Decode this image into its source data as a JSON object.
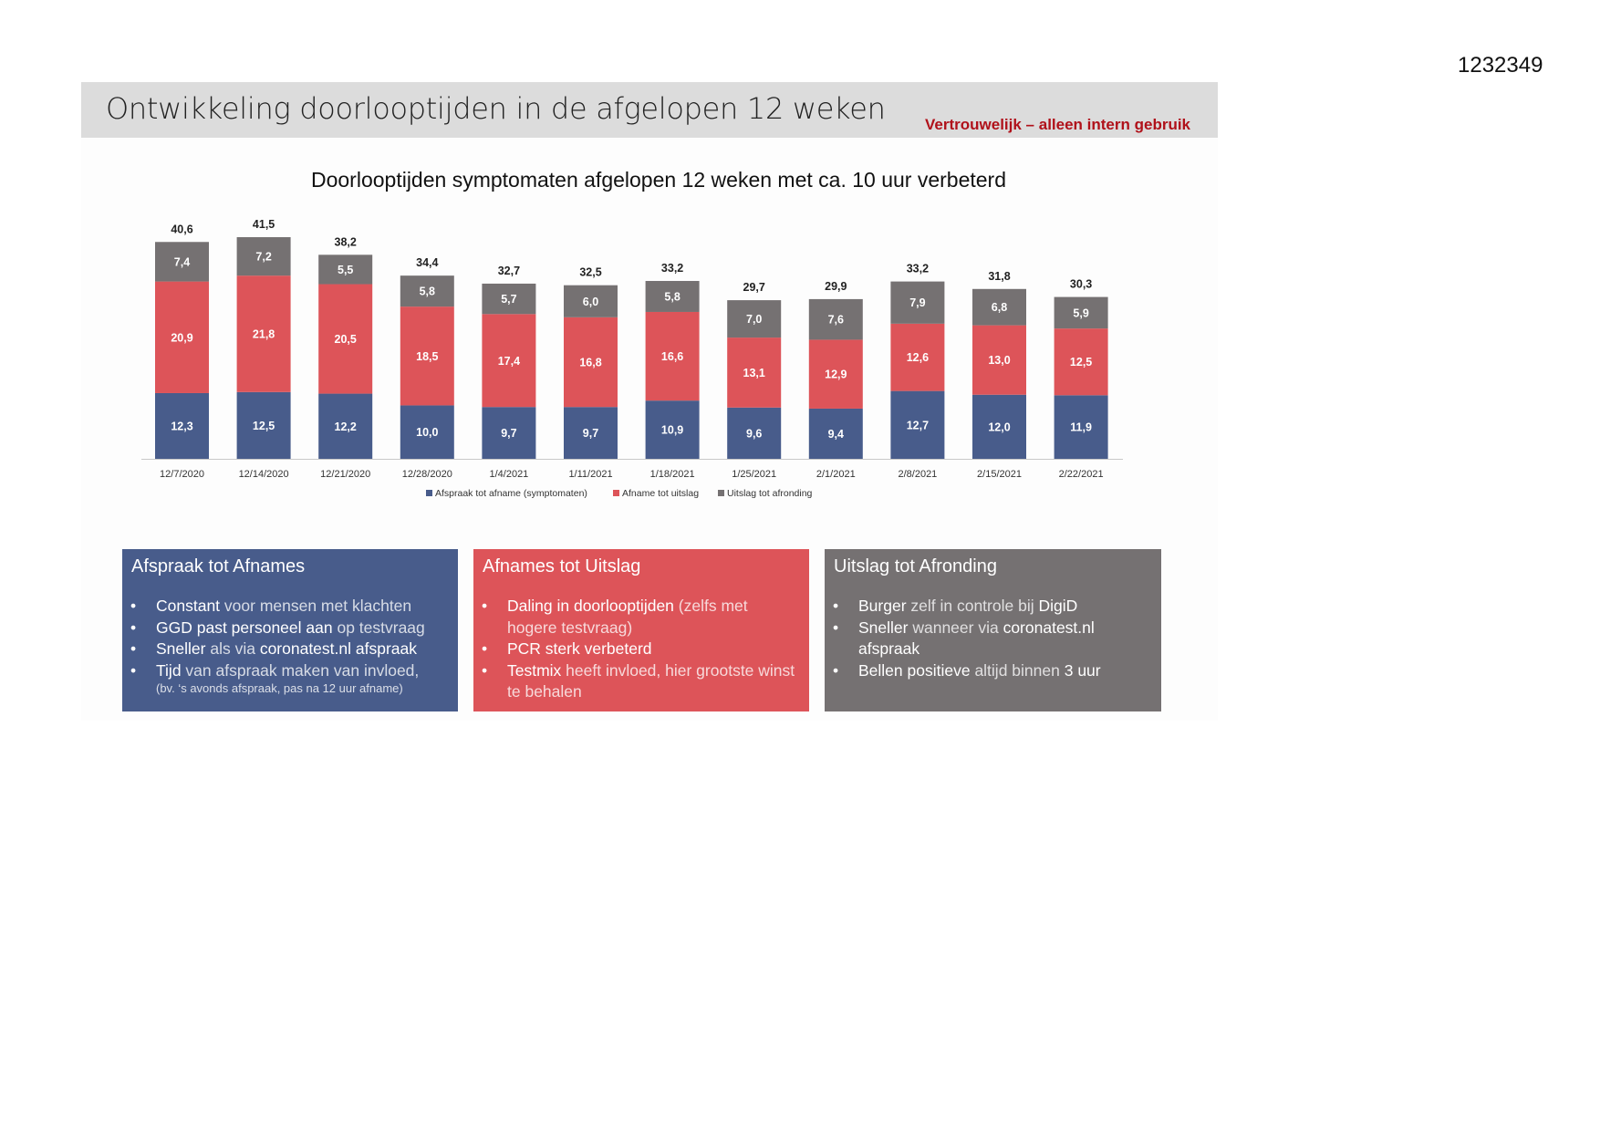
{
  "document_id": "1232349",
  "slide": {
    "title": "Ontwikkeling doorlooptijden in de afgelopen 12 weken",
    "confidential": "Vertrouwelijk – alleen intern gebruik"
  },
  "colors": {
    "blue": "#485c8b",
    "red": "#dd5459",
    "grey": "#757172"
  },
  "chart_data": {
    "type": "bar",
    "stacked": true,
    "title": "Doorlooptijden symptomaten afgelopen 12 weken met ca. 10 uur verbeterd",
    "categories": [
      "12/7/2020",
      "12/14/2020",
      "12/21/2020",
      "12/28/2020",
      "1/4/2021",
      "1/11/2021",
      "1/18/2021",
      "1/25/2021",
      "2/1/2021",
      "2/8/2021",
      "2/15/2021",
      "2/22/2021"
    ],
    "series": [
      {
        "name": "Afspraak tot afname (symptomaten)",
        "color": "#485c8b",
        "values": [
          12.3,
          12.5,
          12.2,
          10.0,
          9.7,
          9.7,
          10.9,
          9.6,
          9.4,
          12.7,
          12.0,
          11.9
        ],
        "labels": [
          "12,3",
          "12,5",
          "12,2",
          "10,0",
          "9,7",
          "9,7",
          "10,9",
          "9,6",
          "9,4",
          "12,7",
          "12,0",
          "11,9"
        ]
      },
      {
        "name": "Afname tot uitslag",
        "color": "#dd5459",
        "values": [
          20.9,
          21.8,
          20.5,
          18.5,
          17.4,
          16.8,
          16.6,
          13.1,
          12.9,
          12.6,
          13.0,
          12.5
        ],
        "labels": [
          "20,9",
          "21,8",
          "20,5",
          "18,5",
          "17,4",
          "16,8",
          "16,6",
          "13,1",
          "12,9",
          "12,6",
          "13,0",
          "12,5"
        ]
      },
      {
        "name": "Uitslag tot afronding",
        "color": "#757172",
        "values": [
          7.4,
          7.2,
          5.5,
          5.8,
          5.7,
          6.0,
          5.8,
          7.0,
          7.6,
          7.9,
          6.8,
          5.9
        ],
        "labels": [
          "7,4",
          "7,2",
          "5,5",
          "5,8",
          "5,7",
          "6,0",
          "5,8",
          "7,0",
          "7,6",
          "7,9",
          "6,8",
          "5,9"
        ]
      }
    ],
    "totals": [
      "40,6",
      "41,5",
      "38,2",
      "34,4",
      "32,7",
      "32,5",
      "33,2",
      "29,7",
      "29,9",
      "33,2",
      "31,8",
      "30,3"
    ],
    "total_values": [
      40.6,
      41.5,
      38.2,
      34.4,
      32.7,
      32.5,
      33.2,
      29.7,
      29.9,
      33.2,
      31.8,
      30.3
    ],
    "ylim": [
      0,
      45
    ],
    "legend": "bottom-center",
    "grid": false
  },
  "panels": [
    {
      "title": "Afspraak tot Afnames",
      "items": [
        {
          "strong": "Constant",
          "rest": " voor mensen met klachten"
        },
        {
          "strong": "GGD past personeel aan",
          "rest": " op testvraag"
        },
        {
          "strong": "Sneller",
          "rest": " als via ",
          "strong2": "coronatest.nl afspraak"
        },
        {
          "strong": "Tijd",
          "rest": " van afspraak maken van invloed,",
          "note": "(bv. ‘s avonds afspraak, pas na 12 uur afname)"
        }
      ]
    },
    {
      "title": "Afnames tot Uitslag",
      "items": [
        {
          "strong": "Daling in doorlooptijden",
          "rest": " (zelfs met hogere testvraag)"
        },
        {
          "strong": "PCR sterk verbeterd",
          "rest": ""
        },
        {
          "strong": "Testmix",
          "rest": " heeft invloed, hier grootste winst te behalen"
        }
      ]
    },
    {
      "title": "Uitslag tot Afronding",
      "items": [
        {
          "strong": "Burger",
          "rest": " zelf in controle bij ",
          "strong2": "DigiD"
        },
        {
          "strong": "Sneller",
          "rest": " wanneer via ",
          "strong2": "coronatest.nl afspraak"
        },
        {
          "strong": "Bellen positieve",
          "rest": " altijd binnen ",
          "strong2": "3 uur"
        }
      ]
    }
  ]
}
